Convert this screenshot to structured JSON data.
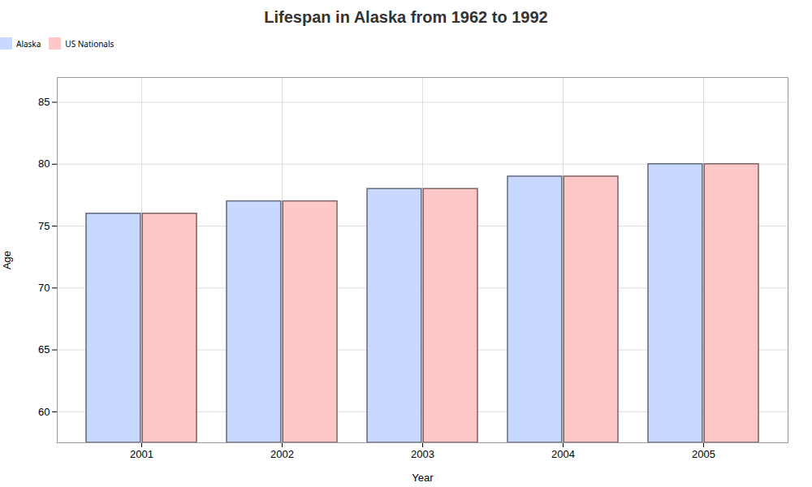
{
  "chart_data": {
    "type": "bar",
    "title": "Lifespan in Alaska from 1962 to 1992",
    "xlabel": "Year",
    "ylabel": "Age",
    "categories": [
      "2001",
      "2002",
      "2003",
      "2004",
      "2005"
    ],
    "series": [
      {
        "name": "Alaska",
        "color": "#c8d8ff",
        "values": [
          76,
          77,
          78,
          79,
          80
        ]
      },
      {
        "name": "US Nationals",
        "color": "#ffc8c8",
        "values": [
          76,
          77,
          78,
          79,
          80
        ]
      }
    ],
    "ylim": [
      57.5,
      87
    ],
    "yticks": [
      60,
      65,
      70,
      75,
      80,
      85
    ],
    "grid": true,
    "legend": "top"
  }
}
